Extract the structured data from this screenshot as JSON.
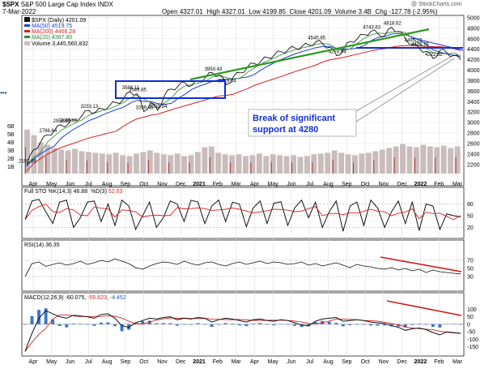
{
  "header": {
    "symbol": "$SPX",
    "name": "S&P 500 Large Cap Index",
    "exchange": "INDX",
    "date": "7-Mar-2022",
    "open_label": "Open",
    "open": "4327.01",
    "high_label": "High",
    "high": "4327.01",
    "low_label": "Low",
    "low": "4199.85",
    "close_label": "Close",
    "close": "4201.09",
    "volume_label": "Volume",
    "volume": "3.4B",
    "chg_label": "Chg",
    "chg": "-127.78 (-2.95%)",
    "watermark": "@ StockCharts.com"
  },
  "legend": {
    "price": "$SPX (Daily) 4201.09",
    "ma50": "MA(50) 4519.75",
    "ma200": "MA(200) 4466.28",
    "ma20": "MA(20) 4387.80",
    "volume": "Volume 3,445,560,832"
  },
  "colors": {
    "ma50": "#1f3fd1",
    "ma200": "#d62020",
    "ma20": "#2d8a2d",
    "volume": "#c9bcbc",
    "trend": "#2a9a1a",
    "box": "#0b2fd6",
    "support": "#1430d8",
    "resist": "#d21a1a",
    "annotation": "#1430d8"
  },
  "annotation": {
    "text_line1": "Break of significant",
    "text_line2": "support at 4280"
  },
  "chart_data": [
    {
      "type": "line",
      "title": "$SPX (Daily)",
      "ylim": [
        2150,
        5000
      ],
      "yticks": [
        "5000",
        "4800",
        "4600",
        "4400",
        "4200",
        "4000",
        "3800",
        "3600",
        "3400",
        "3200",
        "3000",
        "2800",
        "2600",
        "2400",
        "2200"
      ],
      "volume_ticks": [
        "6B",
        "5B",
        "4B",
        "3B",
        "2B",
        "1B"
      ],
      "months": [
        "Apr",
        "May",
        "Jun",
        "Jul",
        "Aug",
        "Sep",
        "Oct",
        "Nov",
        "Dec",
        "2021",
        "Feb",
        "Mar",
        "Apr",
        "May",
        "Jun",
        "Jul",
        "Aug",
        "Sep",
        "Oct",
        "Nov",
        "Dec",
        "2022",
        "Feb",
        "Mar"
      ],
      "close": [
        2191.86,
        2480,
        2620,
        2766.64,
        2840,
        2954.86,
        2965.66,
        3050,
        3130,
        3233.13,
        3200,
        3260,
        3320,
        3380,
        3440,
        3588.11,
        3549.85,
        3209.45,
        3380,
        3233.94,
        3520,
        3640,
        3700,
        3760,
        3710,
        3800,
        3870,
        3950.43,
        3900,
        3723.34,
        3870,
        3950,
        4050,
        4130,
        4170,
        4240,
        4300,
        4350,
        4400,
        4420,
        4460,
        4480,
        4545.85,
        4500,
        4440,
        4278.94,
        4400,
        4550,
        4600,
        4680,
        4743.83,
        4700,
        4660,
        4818.62,
        4740,
        4600,
        4495.12,
        4416.78,
        4360,
        4222.62,
        4380,
        4330,
        4280,
        4201.09
      ],
      "annotations": [
        "3588.11",
        "3549.85",
        "3209.45",
        "3233.94",
        "3233.13",
        "2954.86",
        "2965.66",
        "2766.64",
        "2191.86",
        "3950.43",
        "3723.34",
        "4545.85",
        "4278.94",
        "4743.83",
        "4818.62",
        "4416.78",
        "4495.12",
        "4222.62"
      ]
    },
    {
      "type": "line",
      "title": "Full STO %K(14,3) %D(3)",
      "k_label": "Full STO %K(14,3)",
      "k": "46.88",
      "d_label": "%D(3)",
      "d": "52.63",
      "ylim": [
        0,
        100
      ],
      "yticks": [
        "80",
        "50",
        "20"
      ],
      "k_values": [
        40,
        88,
        92,
        60,
        30,
        85,
        90,
        20,
        45,
        85,
        88,
        35,
        80,
        25,
        90,
        75,
        15,
        50,
        85,
        20,
        45,
        88,
        80,
        35,
        90,
        85,
        30,
        75,
        90,
        35,
        85,
        80,
        22,
        70,
        88,
        30,
        82,
        86,
        25,
        70,
        90,
        45,
        85,
        20,
        60,
        88,
        10,
        75,
        85,
        25,
        90,
        70,
        20,
        60,
        88,
        30,
        85,
        12,
        80,
        75,
        15,
        55,
        50,
        46.88
      ]
    },
    {
      "type": "line",
      "title": "RSI(14)",
      "label": "RSI(14)",
      "value": "36.35",
      "ylim": [
        0,
        100
      ],
      "yticks": [
        "70",
        "50",
        "30"
      ],
      "values": [
        30,
        62,
        66,
        55,
        60,
        64,
        58,
        62,
        68,
        60,
        64,
        70,
        66,
        74,
        68,
        62,
        52,
        48,
        56,
        62,
        66,
        64,
        60,
        68,
        62,
        58,
        64,
        66,
        60,
        56,
        62,
        66,
        60,
        64,
        68,
        62,
        66,
        64,
        60,
        62,
        66,
        58,
        62,
        56,
        60,
        64,
        58,
        52,
        60,
        56,
        54,
        50,
        48,
        52,
        46,
        50,
        44,
        48,
        40,
        46,
        42,
        40,
        38,
        36.35
      ]
    },
    {
      "type": "line",
      "title": "MACD(12,26,9)",
      "label": "MACD(12,26,9)",
      "macd": "-60.075",
      "signal": "-55.623",
      "histogram": "-4.452",
      "ylim": [
        -200,
        150
      ],
      "yticks": [
        "100",
        "50",
        "0",
        "-50",
        "-100",
        "-150"
      ],
      "macd_values": [
        -180,
        -60,
        40,
        90,
        70,
        50,
        40,
        60,
        55,
        50,
        40,
        65,
        70,
        40,
        -10,
        -20,
        10,
        25,
        40,
        35,
        45,
        50,
        30,
        40,
        35,
        45,
        40,
        15,
        30,
        40,
        35,
        25,
        15,
        30,
        35,
        25,
        20,
        30,
        25,
        10,
        -5,
        -10,
        20,
        35,
        40,
        45,
        20,
        25,
        30,
        25,
        15,
        10,
        5,
        -10,
        -20,
        -40,
        -30,
        -25,
        -35,
        -55,
        -70,
        -50,
        -55,
        -60.075
      ]
    },
    {
      "type": "bar",
      "title": "Volume",
      "values": [
        5.5,
        4.8,
        3.9,
        3.6,
        3.2,
        3.0,
        2.9,
        3.1,
        2.8,
        2.7,
        2.6,
        2.5,
        2.4,
        2.6,
        2.3,
        2.2,
        2.5,
        2.7,
        2.9,
        2.6,
        2.4,
        2.3,
        2.5,
        2.2,
        2.3,
        2.7,
        3.3,
        3.4,
        2.6,
        2.4,
        2.3,
        2.4,
        2.2,
        2.3,
        2.5,
        2.2,
        2.4,
        2.3,
        2.2,
        2.3,
        2.1,
        2.2,
        2.4,
        2.5,
        2.6,
        2.9,
        2.6,
        2.4,
        2.3,
        2.5,
        2.6,
        2.8,
        3.0,
        3.2,
        3.4,
        3.7,
        3.4,
        3.3,
        3.6,
        3.4,
        3.3,
        3.5,
        3.2,
        3.4
      ]
    }
  ]
}
